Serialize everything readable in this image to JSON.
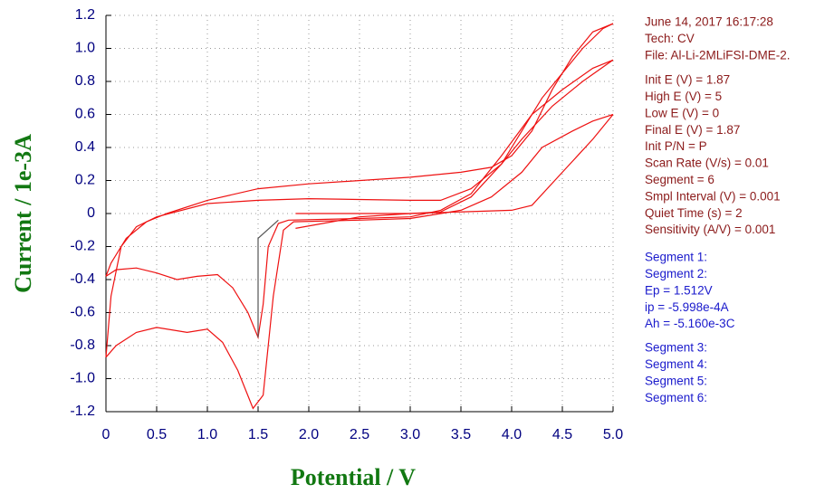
{
  "chart_data": {
    "type": "line",
    "x_label": "Potential / V",
    "y_label": "Current / 1e-3A",
    "xlim": [
      0,
      5
    ],
    "ylim": [
      -1.2,
      1.2
    ],
    "xticks": [
      0,
      0.5,
      {
        "value": 1,
        "label": "1.0"
      },
      1.5,
      {
        "value": 2,
        "label": "2.0"
      },
      2.5,
      {
        "value": 3,
        "label": "3.0"
      },
      3.5,
      {
        "value": 4,
        "label": "4.0"
      },
      4.5,
      {
        "value": 5,
        "label": "5.0"
      }
    ],
    "yticks": [
      -1.2,
      {
        "value": -1,
        "label": "-1.0"
      },
      -0.8,
      -0.6,
      -0.4,
      -0.2,
      0,
      0.2,
      0.4,
      0.6,
      0.8,
      {
        "value": 1,
        "label": "1.0"
      },
      1.2
    ],
    "grid": true,
    "series": [
      {
        "color": "#ee1111",
        "x": [
          1.87,
          2.5,
          3.0,
          3.3,
          3.6,
          3.9,
          4.1,
          4.3,
          4.5,
          4.7,
          4.9,
          5.0
        ],
        "values": [
          0,
          0,
          0,
          0.01,
          0.1,
          0.3,
          0.5,
          0.7,
          0.85,
          1.0,
          1.12,
          1.15
        ]
      },
      {
        "color": "#ee1111",
        "x": [
          5.0,
          4.8,
          4.6,
          4.4,
          4.2,
          4.0,
          3.8,
          3.5,
          3.0,
          2.0,
          1.5,
          1.0,
          0.6,
          0.4,
          0.2,
          0.05,
          0
        ],
        "values": [
          1.15,
          1.1,
          0.95,
          0.75,
          0.5,
          0.35,
          0.28,
          0.25,
          0.22,
          0.18,
          0.15,
          0.08,
          0.0,
          -0.05,
          -0.15,
          -0.3,
          -0.38
        ]
      },
      {
        "color": "#ee1111",
        "x": [
          0,
          0.1,
          0.3,
          0.5,
          0.7,
          0.9,
          1.1,
          1.25,
          1.4,
          1.5,
          1.55,
          1.6,
          1.7,
          1.8,
          2.5,
          3.0,
          3.3,
          3.6,
          3.9,
          4.2,
          4.5,
          4.8,
          5.0
        ],
        "values": [
          -0.38,
          -0.34,
          -0.33,
          -0.36,
          -0.4,
          -0.38,
          -0.37,
          -0.45,
          -0.6,
          -0.75,
          -0.55,
          -0.2,
          -0.06,
          -0.04,
          -0.03,
          -0.02,
          0.02,
          0.12,
          0.35,
          0.6,
          0.75,
          0.88,
          0.93
        ]
      },
      {
        "color": "#ee1111",
        "x": [
          5,
          4.7,
          4.4,
          4.1,
          3.9,
          3.6,
          3.3,
          3.0,
          2.0,
          1.5,
          1.0,
          0.5,
          0.3,
          0.15,
          0.05,
          0
        ],
        "values": [
          0.93,
          0.8,
          0.65,
          0.45,
          0.3,
          0.15,
          0.08,
          0.08,
          0.09,
          0.08,
          0.06,
          -0.02,
          -0.08,
          -0.2,
          -0.5,
          -0.87
        ]
      },
      {
        "color": "#ee1111",
        "x": [
          0,
          0.1,
          0.3,
          0.5,
          0.8,
          1.0,
          1.15,
          1.3,
          1.45,
          1.55,
          1.65,
          1.75,
          1.85,
          2.5,
          3.0,
          3.5,
          3.8,
          4.1,
          4.3,
          4.6,
          4.8,
          5.0
        ],
        "values": [
          -0.87,
          -0.8,
          -0.72,
          -0.69,
          -0.72,
          -0.7,
          -0.78,
          -0.95,
          -1.18,
          -1.1,
          -0.5,
          -0.1,
          -0.05,
          -0.04,
          -0.03,
          0.02,
          0.1,
          0.25,
          0.4,
          0.5,
          0.56,
          0.6
        ]
      },
      {
        "color": "#ee1111",
        "x": [
          5,
          4.8,
          4.5,
          4.2,
          4.0,
          3.0,
          2.5,
          1.87
        ],
        "values": [
          0.6,
          0.45,
          0.25,
          0.05,
          0.02,
          0.0,
          -0.02,
          -0.09
        ]
      },
      {
        "color": "#555555",
        "x": [
          1.5,
          1.5,
          1.7
        ],
        "values": [
          -0.75,
          -0.15,
          -0.04
        ]
      }
    ],
    "info": [
      {
        "color": "#8b1a1a",
        "lines": [
          "June 14, 2017   16:17:28",
          "Tech: CV",
          "File: Al-Li-2MLiFSI-DME-2."
        ]
      },
      {
        "color": "#8b1a1a",
        "lines": [
          "Init E (V) = 1.87",
          "High E (V) = 5",
          "Low E (V) = 0",
          "Final E (V) = 1.87",
          "Init P/N = P",
          "Scan Rate (V/s) = 0.01",
          "Segment = 6",
          "Smpl Interval (V) = 0.001",
          "Quiet Time (s) = 2",
          "Sensitivity (A/V) = 0.001"
        ]
      },
      {
        "color": "#1a1acc",
        "lines": [
          "Segment 1:",
          "Segment 2:",
          "Ep = 1.512V",
          "ip = -5.998e-4A",
          "Ah = -5.160e-3C"
        ]
      },
      {
        "color": "#1a1acc",
        "lines": [
          "Segment 3:",
          "Segment 4:",
          "Segment 5:",
          "Segment 6:"
        ]
      }
    ]
  }
}
